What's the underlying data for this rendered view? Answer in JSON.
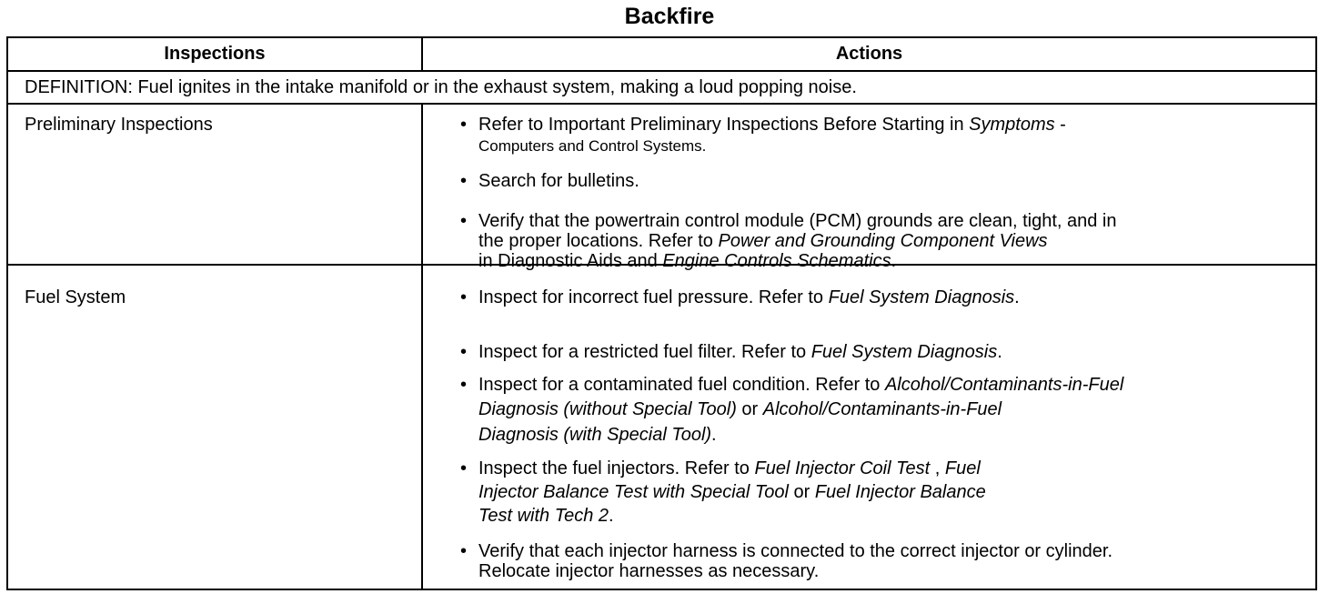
{
  "title": "Backfire",
  "headers": {
    "inspections": "Inspections",
    "actions": "Actions"
  },
  "definition": "DEFINITION: Fuel ignites in the intake manifold or in the exhaust system, making a loud popping noise.",
  "rows": [
    {
      "inspection": "Preliminary Inspections",
      "actions": [
        [
          [
            {
              "t": "Refer to Important Preliminary Inspections Before Starting in "
            },
            {
              "t": "Symptoms",
              "i": true
            },
            {
              "t": " -"
            }
          ],
          [
            {
              "t": "Computers and Control Systems.",
              "s": true
            }
          ]
        ],
        [
          [
            {
              "t": "Search for bulletins."
            }
          ]
        ],
        [
          [
            {
              "t": "Verify that the powertrain control module (PCM) grounds are clean, tight, and in"
            }
          ],
          [
            {
              "t": "the proper locations. Refer to "
            },
            {
              "t": "Power and Grounding Component Views",
              "i": true
            }
          ],
          [
            {
              "t": "in Diagnostic Aids and "
            },
            {
              "t": "Engine Controls Schematics",
              "i": true
            },
            {
              "t": "."
            }
          ]
        ]
      ]
    },
    {
      "inspection": "Fuel System",
      "actions": [
        [
          [
            {
              "t": "Inspect for incorrect fuel pressure. Refer to "
            },
            {
              "t": "Fuel System Diagnosis",
              "i": true
            },
            {
              "t": "."
            }
          ]
        ],
        [
          [
            {
              "t": "Inspect for a restricted fuel filter. Refer to "
            },
            {
              "t": "Fuel System Diagnosis",
              "i": true
            },
            {
              "t": "."
            }
          ]
        ],
        [
          [
            {
              "t": "Inspect for a contaminated fuel condition. Refer to "
            },
            {
              "t": "Alcohol/Contaminants-in-Fuel",
              "i": true
            }
          ],
          [
            {
              "t": "Diagnosis (without Special Tool)",
              "i": true
            },
            {
              "t": " or "
            },
            {
              "t": "Alcohol/Contaminants-in-Fuel",
              "i": true
            }
          ],
          [
            {
              "t": "Diagnosis (with Special Tool)",
              "i": true
            },
            {
              "t": "."
            }
          ]
        ],
        [
          [
            {
              "t": "Inspect the fuel injectors. Refer to "
            },
            {
              "t": "Fuel Injector Coil Test",
              "i": true
            },
            {
              "t": " , "
            },
            {
              "t": "Fuel",
              "i": true
            }
          ],
          [
            {
              "t": "Injector Balance Test with Special Tool",
              "i": true
            },
            {
              "t": " or "
            },
            {
              "t": "Fuel Injector Balance",
              "i": true
            }
          ],
          [
            {
              "t": "Test with Tech 2",
              "i": true
            },
            {
              "t": "."
            }
          ]
        ],
        [
          [
            {
              "t": "Verify that each injector harness is connected to the correct injector or cylinder."
            }
          ],
          [
            {
              "t": "Relocate injector harnesses as necessary."
            }
          ]
        ]
      ]
    }
  ]
}
